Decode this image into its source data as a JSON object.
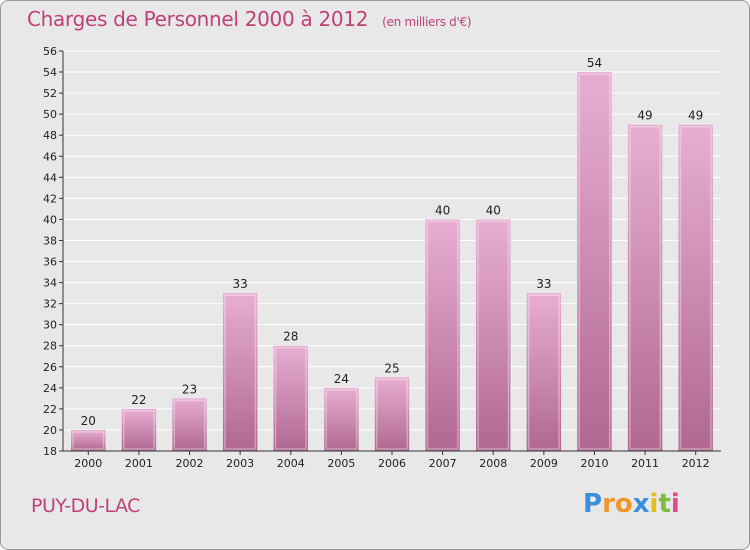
{
  "header": {
    "title": "Charges de Personnel 2000 à 2012",
    "subtitle": "(en milliers d'€)"
  },
  "footer": {
    "place": "PUY-DU-LAC",
    "logo_letters": [
      "P",
      "r",
      "o",
      "x",
      "i",
      "t",
      "i"
    ],
    "logo_colors": [
      "#3a8fd8",
      "#f0962a",
      "#f0962a",
      "#3a8fd8",
      "#e0c020",
      "#7cbd3a",
      "#e04a8a"
    ]
  },
  "colors": {
    "bar": "#d98fb8",
    "bar_light": "#e8aed2",
    "bar_dark": "#b06890",
    "grid": "#ffffff",
    "accent": "#c0407a"
  },
  "chart_data": {
    "type": "bar",
    "categories": [
      "2000",
      "2001",
      "2002",
      "2003",
      "2004",
      "2005",
      "2006",
      "2007",
      "2008",
      "2009",
      "2010",
      "2011",
      "2012"
    ],
    "values": [
      20,
      22,
      23,
      33,
      28,
      24,
      25,
      40,
      40,
      33,
      54,
      49,
      49
    ],
    "data_labels": [
      "20",
      "22",
      "23",
      "33",
      "28",
      "24",
      "25",
      "40",
      "40",
      "33",
      "54",
      "49",
      "49"
    ],
    "title": "Charges de Personnel 2000 à 2012",
    "subtitle": "(en milliers d'€)",
    "ylim": [
      18,
      56
    ],
    "yticks": [
      18,
      20,
      22,
      24,
      26,
      28,
      30,
      32,
      34,
      36,
      38,
      40,
      42,
      44,
      46,
      48,
      50,
      52,
      54,
      56
    ],
    "ytick_labels": [
      "18",
      "20",
      "22",
      "24",
      "26",
      "28",
      "30",
      "32",
      "34",
      "36",
      "38",
      "40",
      "42",
      "44",
      "46",
      "48",
      "50",
      "52",
      "54",
      "56"
    ],
    "grid": true
  }
}
